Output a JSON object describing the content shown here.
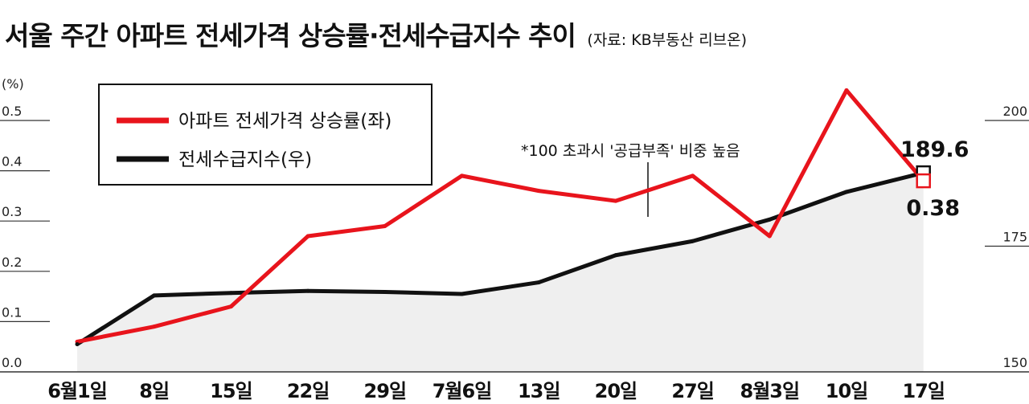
{
  "title": "서울 주간 아파트 전세가격 상승률·전세수급지수 추이",
  "source": "(자료: KB부동산 리브온)",
  "chart_data": {
    "type": "line",
    "categories": [
      "6월1일",
      "8일",
      "15일",
      "22일",
      "29일",
      "7월6일",
      "13일",
      "20일",
      "27일",
      "8월3일",
      "10일",
      "17일"
    ],
    "series": [
      {
        "name": "아파트 전세가격 상승률(좌)",
        "axis": "left",
        "color": "#e8141c",
        "values": [
          0.06,
          0.09,
          0.13,
          0.27,
          0.29,
          0.39,
          0.36,
          0.34,
          0.39,
          0.27,
          0.56,
          0.38
        ]
      },
      {
        "name": "전세수급지수(우)",
        "axis": "right",
        "color": "#111111",
        "values": [
          155.5,
          165.2,
          165.7,
          166.1,
          165.9,
          165.5,
          167.8,
          173.2,
          176.0,
          180.3,
          185.8,
          189.6
        ]
      }
    ],
    "left_axis": {
      "unit": "(%)",
      "ticks": [
        "0.5",
        "0.4",
        "0.3",
        "0.2",
        "0.1",
        "0.0"
      ]
    },
    "right_axis": {
      "ticks": [
        "200",
        "175",
        "150"
      ],
      "ylim": [
        150,
        200
      ]
    },
    "annotation": "*100 초과시 '공급부족' 비중 높음",
    "end_labels": {
      "right_series": "189.6",
      "left_series": "0.38"
    },
    "legend_placement": "top-left",
    "grid": false
  }
}
